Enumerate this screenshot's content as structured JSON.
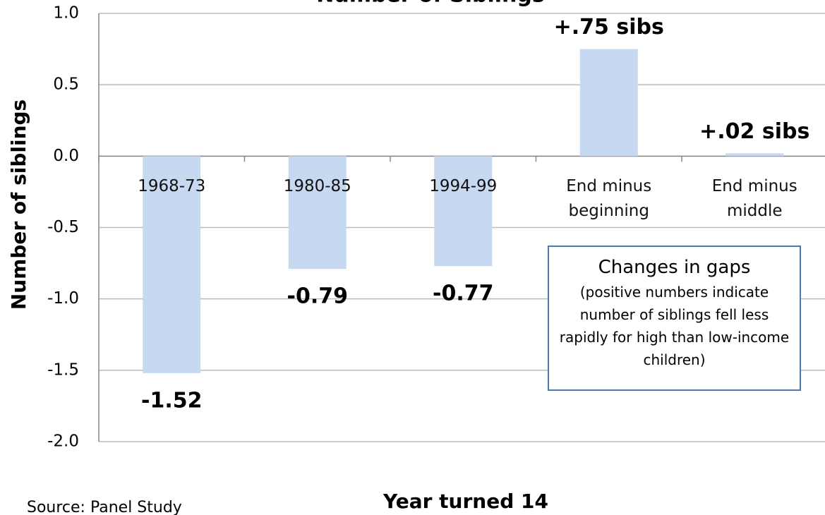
{
  "chart_data": {
    "type": "bar",
    "title": "Number of Siblings",
    "x_label": "Year turned 14",
    "y_label": "Number of siblings",
    "source": "Source: Panel Study",
    "categories": [
      "1968-73",
      "1980-85",
      "1994-99",
      "End minus beginning",
      "End minus middle"
    ],
    "values": [
      -1.52,
      -0.79,
      -0.77,
      0.75,
      0.02
    ],
    "value_labels": [
      "-1.52",
      "-0.79",
      "-0.77",
      "+.75 sibs",
      "+.02 sibs"
    ],
    "color": "#c6d9f0",
    "ylim": [
      -2.0,
      1.0
    ],
    "yticks": [
      {
        "value": -2,
        "label": "-2.0"
      },
      {
        "value": -1.5,
        "label": "-1.5"
      },
      {
        "value": -1,
        "label": "-1.0"
      },
      {
        "value": -0.5,
        "label": "-0.5"
      },
      {
        "value": 0,
        "label": "0.0"
      },
      {
        "value": 0.5,
        "label": "0.5"
      },
      {
        "value": 1,
        "label": "1.0"
      }
    ],
    "grid": true,
    "annotation": {
      "title": "Changes in gaps",
      "text": "(positive numbers indicate number of siblings fell less rapidly for high than low-income children)"
    }
  }
}
